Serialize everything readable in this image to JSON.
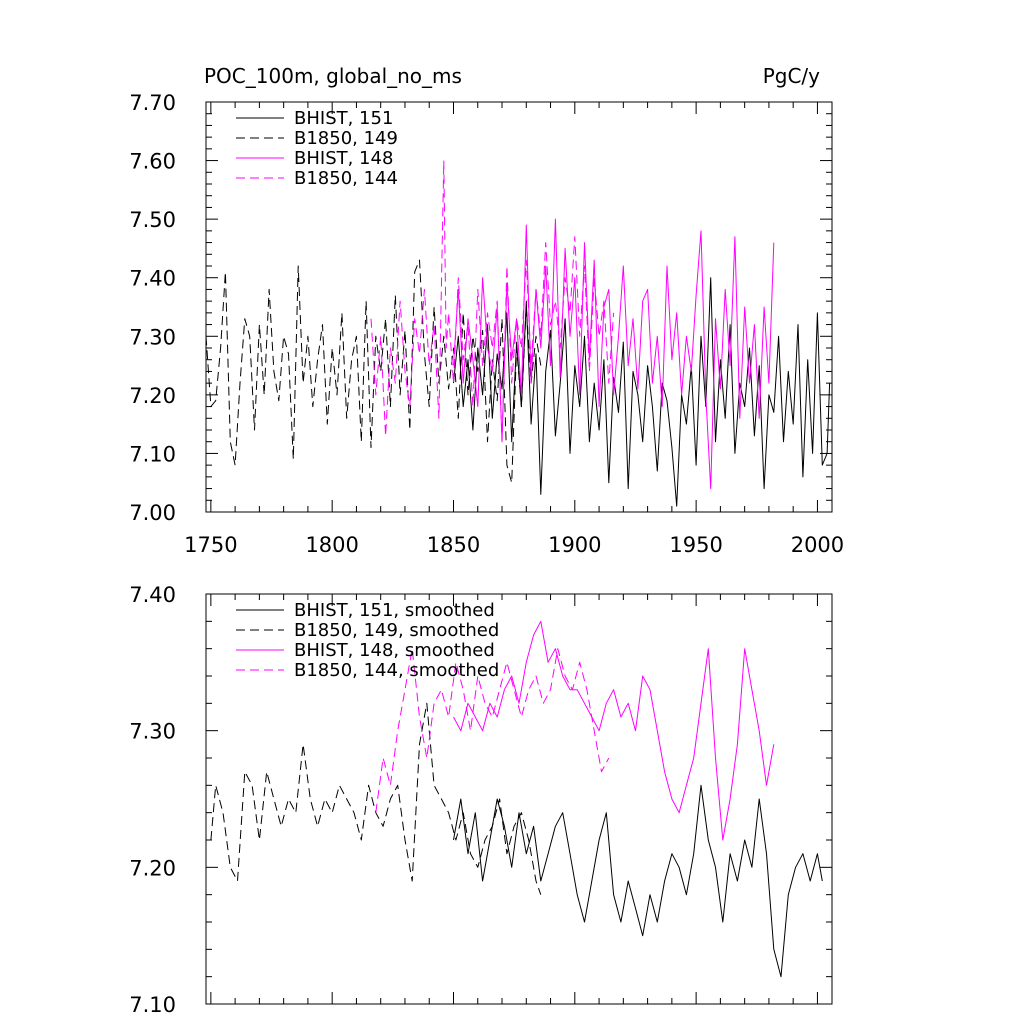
{
  "chart_data": [
    {
      "type": "line",
      "title": "POC_100m, global_no_ms",
      "units": "PgC/y",
      "xlim": [
        1748,
        2006
      ],
      "ylim": [
        7.0,
        7.7
      ],
      "xticks": [
        1750,
        1800,
        1850,
        1900,
        1950,
        2000
      ],
      "xtick_labels": [
        "1750",
        "1800",
        "1850",
        "1900",
        "1950",
        "2000"
      ],
      "yticks": [
        7.0,
        7.1,
        7.2,
        7.3,
        7.4,
        7.5,
        7.6,
        7.7
      ],
      "ytick_labels": [
        "7.00",
        "7.10",
        "7.20",
        "7.30",
        "7.40",
        "7.50",
        "7.60",
        "7.70"
      ],
      "legend_position": "top-left",
      "series": [
        {
          "name": "BHIST, 151",
          "color": "#000000",
          "dash": "solid",
          "x": [
            1850,
            1852,
            1854,
            1856,
            1858,
            1860,
            1862,
            1864,
            1866,
            1868,
            1870,
            1872,
            1874,
            1876,
            1878,
            1880,
            1882,
            1884,
            1886,
            1888,
            1890,
            1892,
            1894,
            1896,
            1898,
            1900,
            1902,
            1904,
            1906,
            1908,
            1910,
            1912,
            1914,
            1916,
            1918,
            1920,
            1922,
            1924,
            1926,
            1928,
            1930,
            1932,
            1934,
            1936,
            1938,
            1940,
            1942,
            1944,
            1946,
            1948,
            1950,
            1952,
            1954,
            1956,
            1958,
            1960,
            1962,
            1964,
            1966,
            1968,
            1970,
            1972,
            1974,
            1976,
            1978,
            1980,
            1982,
            1984,
            1986,
            1988,
            1990,
            1992,
            1994,
            1996,
            1998,
            2000,
            2002,
            2004,
            2005
          ],
          "y": [
            7.22,
            7.3,
            7.18,
            7.26,
            7.14,
            7.28,
            7.2,
            7.32,
            7.16,
            7.27,
            7.21,
            7.34,
            7.12,
            7.29,
            7.18,
            7.36,
            7.15,
            7.27,
            7.03,
            7.24,
            7.31,
            7.13,
            7.22,
            7.33,
            7.1,
            7.25,
            7.18,
            7.3,
            7.12,
            7.22,
            7.14,
            7.26,
            7.05,
            7.23,
            7.17,
            7.29,
            7.04,
            7.24,
            7.2,
            7.12,
            7.25,
            7.18,
            7.07,
            7.22,
            7.19,
            7.11,
            7.01,
            7.2,
            7.15,
            7.25,
            7.08,
            7.3,
            7.18,
            7.4,
            7.12,
            7.26,
            7.16,
            7.32,
            7.1,
            7.22,
            7.18,
            7.28,
            7.13,
            7.25,
            7.04,
            7.2,
            7.17,
            7.3,
            7.12,
            7.24,
            7.15,
            7.32,
            7.06,
            7.26,
            7.1,
            7.34,
            7.08,
            7.1,
            7.22
          ]
        },
        {
          "name": "B1850, 149",
          "color": "#000000",
          "dash": "dashed",
          "x": [
            1748,
            1750,
            1752,
            1754,
            1756,
            1758,
            1760,
            1762,
            1764,
            1766,
            1768,
            1770,
            1772,
            1774,
            1776,
            1778,
            1780,
            1782,
            1784,
            1786,
            1788,
            1790,
            1792,
            1794,
            1796,
            1798,
            1800,
            1802,
            1804,
            1806,
            1808,
            1810,
            1812,
            1814,
            1816,
            1818,
            1820,
            1822,
            1824,
            1826,
            1828,
            1830,
            1832,
            1834,
            1836,
            1838,
            1840,
            1842,
            1844,
            1846,
            1848,
            1850,
            1852,
            1854,
            1856,
            1858,
            1860,
            1862,
            1864,
            1866,
            1868,
            1870,
            1872,
            1874,
            1876,
            1878,
            1880,
            1882,
            1884,
            1886
          ],
          "y": [
            7.3,
            7.18,
            7.19,
            7.28,
            7.41,
            7.12,
            7.08,
            7.22,
            7.33,
            7.3,
            7.14,
            7.32,
            7.2,
            7.38,
            7.24,
            7.19,
            7.3,
            7.27,
            7.09,
            7.42,
            7.22,
            7.3,
            7.18,
            7.26,
            7.32,
            7.15,
            7.28,
            7.2,
            7.34,
            7.16,
            7.26,
            7.3,
            7.12,
            7.36,
            7.11,
            7.3,
            7.24,
            7.33,
            7.18,
            7.37,
            7.2,
            7.31,
            7.14,
            7.41,
            7.43,
            7.27,
            7.18,
            7.35,
            7.22,
            7.3,
            7.21,
            7.28,
            7.16,
            7.34,
            7.2,
            7.3,
            7.24,
            7.31,
            7.12,
            7.26,
            7.19,
            7.33,
            7.08,
            7.05,
            7.28,
            7.18,
            7.35,
            7.22,
            7.3,
            7.25
          ]
        },
        {
          "name": "BHIST, 148",
          "color": "#ff00ff",
          "dash": "solid",
          "x": [
            1850,
            1852,
            1854,
            1856,
            1858,
            1860,
            1862,
            1864,
            1866,
            1868,
            1870,
            1872,
            1874,
            1876,
            1878,
            1880,
            1882,
            1884,
            1886,
            1888,
            1890,
            1892,
            1894,
            1896,
            1898,
            1900,
            1902,
            1904,
            1906,
            1908,
            1910,
            1912,
            1914,
            1916,
            1918,
            1920,
            1922,
            1924,
            1926,
            1928,
            1930,
            1932,
            1934,
            1936,
            1938,
            1940,
            1942,
            1944,
            1946,
            1948,
            1950,
            1952,
            1954,
            1956,
            1958,
            1960,
            1962,
            1964,
            1966,
            1968,
            1970,
            1972,
            1974,
            1976,
            1978,
            1980,
            1982
          ],
          "y": [
            7.25,
            7.38,
            7.22,
            7.33,
            7.26,
            7.18,
            7.4,
            7.28,
            7.24,
            7.35,
            7.12,
            7.39,
            7.26,
            7.33,
            7.2,
            7.49,
            7.22,
            7.38,
            7.28,
            7.42,
            7.25,
            7.5,
            7.23,
            7.45,
            7.3,
            7.4,
            7.2,
            7.46,
            7.26,
            7.43,
            7.18,
            7.35,
            7.38,
            7.2,
            7.3,
            7.42,
            7.25,
            7.33,
            7.21,
            7.36,
            7.38,
            7.22,
            7.3,
            7.18,
            7.42,
            7.26,
            7.34,
            7.2,
            7.3,
            7.24,
            7.37,
            7.48,
            7.2,
            7.04,
            7.33,
            7.21,
            7.38,
            7.25,
            7.47,
            7.16,
            7.35,
            7.22,
            7.32,
            7.16,
            7.35,
            7.22,
            7.46
          ]
        },
        {
          "name": "B1850, 144",
          "color": "#ff00ff",
          "dash": "dashed",
          "x": [
            1816,
            1818,
            1820,
            1822,
            1824,
            1826,
            1828,
            1830,
            1832,
            1834,
            1836,
            1838,
            1840,
            1842,
            1844,
            1846,
            1847,
            1848,
            1850,
            1852,
            1854,
            1856,
            1858,
            1860,
            1862,
            1864,
            1866,
            1868,
            1870,
            1872,
            1874,
            1876,
            1878,
            1880,
            1882,
            1884,
            1886,
            1888,
            1890,
            1892,
            1894,
            1896,
            1898,
            1900,
            1902,
            1904,
            1906,
            1908,
            1910,
            1912,
            1914,
            1916
          ],
          "y": [
            7.33,
            7.2,
            7.3,
            7.13,
            7.28,
            7.22,
            7.36,
            7.24,
            7.18,
            7.33,
            7.27,
            7.38,
            7.25,
            7.32,
            7.16,
            7.6,
            7.28,
            7.34,
            7.22,
            7.4,
            7.26,
            7.32,
            7.18,
            7.38,
            7.25,
            7.34,
            7.28,
            7.36,
            7.12,
            7.42,
            7.22,
            7.33,
            7.28,
            7.43,
            7.25,
            7.38,
            7.3,
            7.46,
            7.32,
            7.36,
            7.28,
            7.4,
            7.34,
            7.47,
            7.3,
            7.42,
            7.24,
            7.4,
            7.3,
            7.36,
            7.22,
            7.34
          ]
        }
      ]
    },
    {
      "type": "line",
      "xlim": [
        1748,
        2006
      ],
      "ylim": [
        7.1,
        7.4
      ],
      "yticks": [
        7.1,
        7.2,
        7.3,
        7.4
      ],
      "ytick_labels": [
        "7.10",
        "7.20",
        "7.30",
        "7.40"
      ],
      "legend_position": "top-left",
      "series": [
        {
          "name": "BHIST, 151, smoothed",
          "color": "#000000",
          "dash": "solid",
          "x": [
            1850,
            1853,
            1856,
            1859,
            1862,
            1865,
            1868,
            1871,
            1874,
            1877,
            1880,
            1883,
            1886,
            1889,
            1892,
            1895,
            1898,
            1901,
            1904,
            1907,
            1910,
            1913,
            1916,
            1919,
            1922,
            1925,
            1928,
            1931,
            1934,
            1937,
            1940,
            1943,
            1946,
            1949,
            1952,
            1955,
            1958,
            1961,
            1964,
            1967,
            1970,
            1973,
            1976,
            1979,
            1982,
            1985,
            1988,
            1991,
            1994,
            1997,
            2000,
            2002
          ],
          "y": [
            7.22,
            7.25,
            7.21,
            7.24,
            7.19,
            7.22,
            7.25,
            7.23,
            7.2,
            7.24,
            7.21,
            7.23,
            7.19,
            7.21,
            7.23,
            7.24,
            7.21,
            7.18,
            7.16,
            7.19,
            7.22,
            7.24,
            7.18,
            7.16,
            7.19,
            7.17,
            7.15,
            7.18,
            7.16,
            7.19,
            7.21,
            7.2,
            7.18,
            7.21,
            7.26,
            7.22,
            7.2,
            7.16,
            7.21,
            7.19,
            7.22,
            7.2,
            7.25,
            7.21,
            7.14,
            7.12,
            7.18,
            7.2,
            7.21,
            7.19,
            7.21,
            7.19
          ]
        },
        {
          "name": "B1850, 149, smoothed",
          "color": "#000000",
          "dash": "dashed",
          "x": [
            1750,
            1752,
            1755,
            1758,
            1761,
            1764,
            1767,
            1770,
            1773,
            1776,
            1779,
            1782,
            1785,
            1788,
            1791,
            1794,
            1797,
            1800,
            1803,
            1806,
            1809,
            1812,
            1815,
            1818,
            1821,
            1824,
            1827,
            1830,
            1833,
            1836,
            1839,
            1842,
            1845,
            1848,
            1851,
            1854,
            1857,
            1860,
            1863,
            1866,
            1869,
            1872,
            1875,
            1878,
            1881,
            1884,
            1886
          ],
          "y": [
            7.22,
            7.26,
            7.24,
            7.2,
            7.19,
            7.27,
            7.26,
            7.22,
            7.27,
            7.25,
            7.23,
            7.25,
            7.24,
            7.29,
            7.25,
            7.23,
            7.25,
            7.24,
            7.26,
            7.25,
            7.24,
            7.22,
            7.26,
            7.24,
            7.23,
            7.25,
            7.26,
            7.22,
            7.19,
            7.29,
            7.32,
            7.26,
            7.25,
            7.24,
            7.22,
            7.24,
            7.21,
            7.2,
            7.22,
            7.23,
            7.25,
            7.21,
            7.23,
            7.24,
            7.22,
            7.19,
            7.18
          ]
        },
        {
          "name": "BHIST, 148, smoothed",
          "color": "#ff00ff",
          "dash": "solid",
          "x": [
            1850,
            1853,
            1856,
            1859,
            1862,
            1865,
            1868,
            1871,
            1874,
            1877,
            1880,
            1883,
            1886,
            1889,
            1892,
            1895,
            1898,
            1901,
            1904,
            1907,
            1910,
            1913,
            1916,
            1919,
            1922,
            1925,
            1928,
            1931,
            1934,
            1937,
            1940,
            1943,
            1946,
            1949,
            1952,
            1955,
            1958,
            1961,
            1964,
            1967,
            1970,
            1973,
            1976,
            1979,
            1982
          ],
          "y": [
            7.31,
            7.3,
            7.32,
            7.31,
            7.3,
            7.32,
            7.31,
            7.33,
            7.34,
            7.32,
            7.35,
            7.37,
            7.38,
            7.35,
            7.36,
            7.34,
            7.33,
            7.33,
            7.32,
            7.31,
            7.3,
            7.32,
            7.33,
            7.31,
            7.32,
            7.3,
            7.34,
            7.33,
            7.3,
            7.27,
            7.25,
            7.24,
            7.26,
            7.28,
            7.32,
            7.36,
            7.28,
            7.22,
            7.25,
            7.29,
            7.36,
            7.33,
            7.3,
            7.26,
            7.29
          ]
        },
        {
          "name": "B1850, 144, smoothed",
          "color": "#ff00ff",
          "dash": "dashed",
          "x": [
            1818,
            1821,
            1824,
            1827,
            1830,
            1833,
            1836,
            1839,
            1842,
            1845,
            1848,
            1851,
            1854,
            1857,
            1860,
            1863,
            1866,
            1869,
            1872,
            1875,
            1878,
            1881,
            1884,
            1887,
            1890,
            1893,
            1896,
            1899,
            1902,
            1905,
            1908,
            1911,
            1914
          ],
          "y": [
            7.24,
            7.28,
            7.26,
            7.3,
            7.33,
            7.36,
            7.31,
            7.28,
            7.32,
            7.33,
            7.31,
            7.35,
            7.33,
            7.3,
            7.34,
            7.32,
            7.31,
            7.33,
            7.35,
            7.33,
            7.31,
            7.33,
            7.34,
            7.32,
            7.33,
            7.36,
            7.34,
            7.33,
            7.35,
            7.33,
            7.3,
            7.27,
            7.28
          ]
        }
      ]
    }
  ]
}
